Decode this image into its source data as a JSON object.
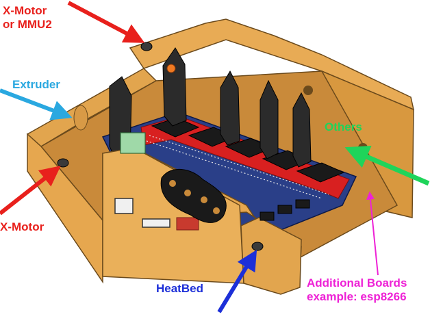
{
  "labels": {
    "x_motor_or_mmu2": [
      "X-Motor",
      "or MMU2"
    ],
    "extruder": "Extruder",
    "others": "Others",
    "x_motor": "X-Motor",
    "heatbed": "HeatBed",
    "additional_boards": [
      "Additional Boards",
      "example: esp8266"
    ]
  },
  "colors": {
    "x_motor": "#e8201c",
    "extruder": "#2aa8e0",
    "others": "#1fd45a",
    "heatbed": "#1c2fd8",
    "additional_boards": "#ee22d6",
    "enclosure": "#e2a54e",
    "board": "#1e3a8a",
    "driver_header": "#d82020",
    "driver_slot": "#1a1a1a"
  }
}
